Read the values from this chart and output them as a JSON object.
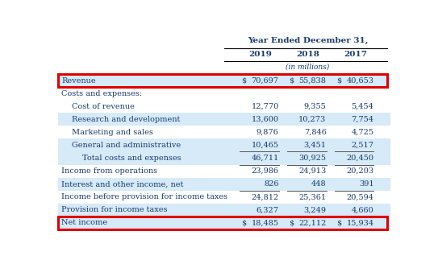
{
  "header_title": "Year Ended December 31,",
  "col_headers": [
    "2019",
    "2018",
    "2017"
  ],
  "subheader": "(in millions)",
  "rows": [
    {
      "label": "Revenue",
      "indent": 0,
      "vals": [
        "$",
        "70,697",
        "$",
        "55,838",
        "$",
        "40,653"
      ],
      "bg": "blue",
      "red_box": true,
      "underline_above": false,
      "underline_below": false
    },
    {
      "label": "Costs and expenses:",
      "indent": 0,
      "vals": [
        "",
        "",
        "",
        "",
        "",
        ""
      ],
      "bg": "white",
      "red_box": false,
      "underline_above": false,
      "underline_below": false
    },
    {
      "label": "Cost of revenue",
      "indent": 1,
      "vals": [
        "",
        "12,770",
        "",
        "9,355",
        "",
        "5,454"
      ],
      "bg": "white",
      "red_box": false,
      "underline_above": false,
      "underline_below": false
    },
    {
      "label": "Research and development",
      "indent": 1,
      "vals": [
        "",
        "13,600",
        "",
        "10,273",
        "",
        "7,754"
      ],
      "bg": "blue",
      "red_box": false,
      "underline_above": false,
      "underline_below": false
    },
    {
      "label": "Marketing and sales",
      "indent": 1,
      "vals": [
        "",
        "9,876",
        "",
        "7,846",
        "",
        "4,725"
      ],
      "bg": "white",
      "red_box": false,
      "underline_above": false,
      "underline_below": false
    },
    {
      "label": "General and administrative",
      "indent": 1,
      "vals": [
        "",
        "10,465",
        "",
        "3,451",
        "",
        "2,517"
      ],
      "bg": "blue",
      "red_box": false,
      "underline_above": false,
      "underline_below": true
    },
    {
      "label": "Total costs and expenses",
      "indent": 2,
      "vals": [
        "",
        "46,711",
        "",
        "30,925",
        "",
        "20,450"
      ],
      "bg": "blue",
      "red_box": false,
      "underline_above": false,
      "underline_below": true
    },
    {
      "label": "Income from operations",
      "indent": 0,
      "vals": [
        "",
        "23,986",
        "",
        "24,913",
        "",
        "20,203"
      ],
      "bg": "white",
      "red_box": false,
      "underline_above": false,
      "underline_below": false
    },
    {
      "label": "Interest and other income, net",
      "indent": 0,
      "vals": [
        "",
        "826",
        "",
        "448",
        "",
        "391"
      ],
      "bg": "blue",
      "red_box": false,
      "underline_above": false,
      "underline_below": true
    },
    {
      "label": "Income before provision for income taxes",
      "indent": 0,
      "vals": [
        "",
        "24,812",
        "",
        "25,361",
        "",
        "20,594"
      ],
      "bg": "white",
      "red_box": false,
      "underline_above": false,
      "underline_below": false
    },
    {
      "label": "Provision for income taxes",
      "indent": 0,
      "vals": [
        "",
        "6,327",
        "",
        "3,249",
        "",
        "4,660"
      ],
      "bg": "blue",
      "red_box": false,
      "underline_above": false,
      "underline_below": false
    },
    {
      "label": "Net income",
      "indent": 0,
      "vals": [
        "$",
        "18,485",
        "$",
        "22,112",
        "$",
        "15,934"
      ],
      "bg": "blue",
      "red_box": true,
      "underline_above": false,
      "underline_below": false
    }
  ],
  "bg_color": "#ffffff",
  "light_blue": "#d6eaf8",
  "red_border_color": "#e00000",
  "header_line_color": "#000000",
  "underline_color": "#555555",
  "text_color": "#1a3a6b",
  "header_text_color": "#1a3a6b",
  "label_indent_unit": 0.03,
  "col_header_fontsize": 7.5,
  "data_fontsize": 7.0,
  "subheader_fontsize": 6.5
}
